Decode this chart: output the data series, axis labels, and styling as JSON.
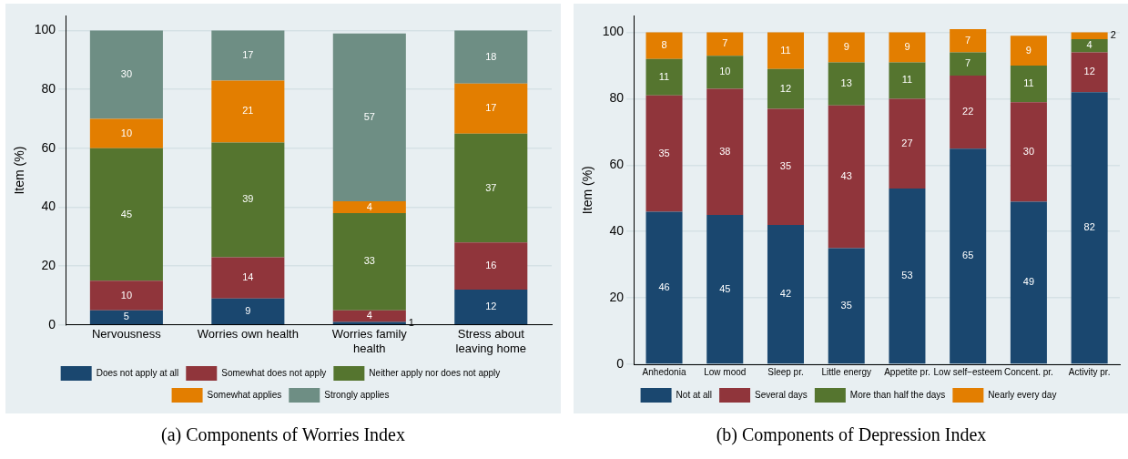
{
  "chart_data": [
    {
      "type": "bar",
      "stacked": true,
      "ylabel": "Item (%)",
      "categories": [
        "Nervousness",
        "Worries own health",
        "Worries family health",
        "Stress about leaving home"
      ],
      "series": [
        {
          "name": "Does not apply at all",
          "color": "#1a476f",
          "values": [
            5,
            9,
            1,
            12
          ]
        },
        {
          "name": "Somewhat does not apply",
          "color": "#90353b",
          "values": [
            10,
            14,
            4,
            16
          ]
        },
        {
          "name": "Neither apply nor does not apply",
          "color": "#55752f",
          "values": [
            45,
            39,
            33,
            37
          ]
        },
        {
          "name": "Somewhat applies",
          "color": "#e37e00",
          "values": [
            10,
            21,
            4,
            17
          ]
        },
        {
          "name": "Strongly applies",
          "color": "#6e8e84",
          "values": [
            30,
            17,
            57,
            18
          ]
        }
      ],
      "ylim": [
        0,
        105
      ],
      "yticks": [
        0,
        20,
        40,
        60,
        80,
        100
      ],
      "grid": "y",
      "legend": "bottom",
      "data_labels": true,
      "annotations": [
        "(a) Components of Worries Index"
      ]
    },
    {
      "type": "bar",
      "stacked": true,
      "ylabel": "Item (%)",
      "categories": [
        "Anhedonia",
        "Low mood",
        "Sleep pr.",
        "Little energy",
        "Appetite pr.",
        "Low self−esteem",
        "Concent. pr.",
        "Activity pr."
      ],
      "series": [
        {
          "name": "Not at all",
          "color": "#1a476f",
          "values": [
            46,
            45,
            42,
            35,
            53,
            65,
            49,
            82
          ]
        },
        {
          "name": "Several days",
          "color": "#90353b",
          "values": [
            35,
            38,
            35,
            43,
            27,
            22,
            30,
            12
          ]
        },
        {
          "name": "More than half the days",
          "color": "#55752f",
          "values": [
            11,
            10,
            12,
            13,
            11,
            7,
            11,
            4
          ]
        },
        {
          "name": "Nearly every day",
          "color": "#e37e00",
          "values": [
            8,
            7,
            11,
            9,
            9,
            7,
            9,
            2
          ]
        }
      ],
      "ylim": [
        0,
        105
      ],
      "yticks": [
        0,
        20,
        40,
        60,
        80,
        100
      ],
      "grid": "y",
      "legend": "bottom",
      "data_labels": true,
      "annotations": [
        "(b) Components of Depression Index"
      ]
    }
  ]
}
